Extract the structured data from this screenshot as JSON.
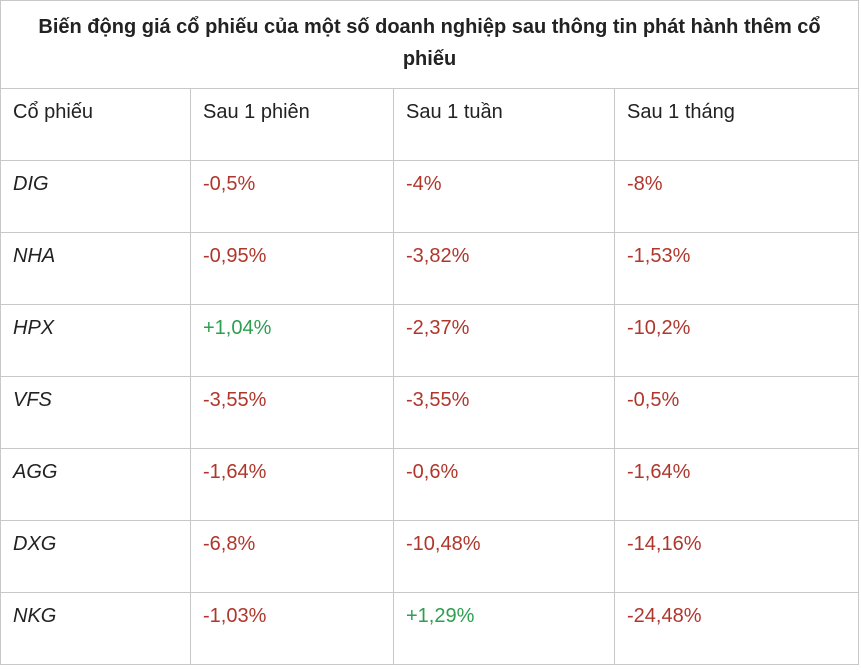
{
  "table": {
    "title": "Biến động giá cổ phiếu của một số doanh nghiệp sau thông tin phát hành thêm cổ phiếu",
    "header": [
      "Cổ phiếu",
      "Sau 1 phiên",
      "Sau 1 tuần",
      "Sau 1 tháng"
    ],
    "rows": [
      [
        "DIG",
        "-0,5%",
        "-4%",
        "-8%"
      ],
      [
        "NHA",
        "-0,95%",
        "-3,82%",
        "-1,53%"
      ],
      [
        "HPX",
        "+1,04%",
        "-2,37%",
        "-10,2%"
      ],
      [
        "VFS",
        "-3,55%",
        "-3,55%",
        "-0,5%"
      ],
      [
        "AGG",
        "-1,64%",
        "-0,6%",
        "-1,64%"
      ],
      [
        "DXG",
        "-6,8%",
        "-10,48%",
        "-14,16%"
      ],
      [
        "NKG",
        "-1,03%",
        "+1,29%",
        "-24,48%"
      ]
    ],
    "negative_color": "#b0362c",
    "positive_color": "#2e9e4f"
  }
}
